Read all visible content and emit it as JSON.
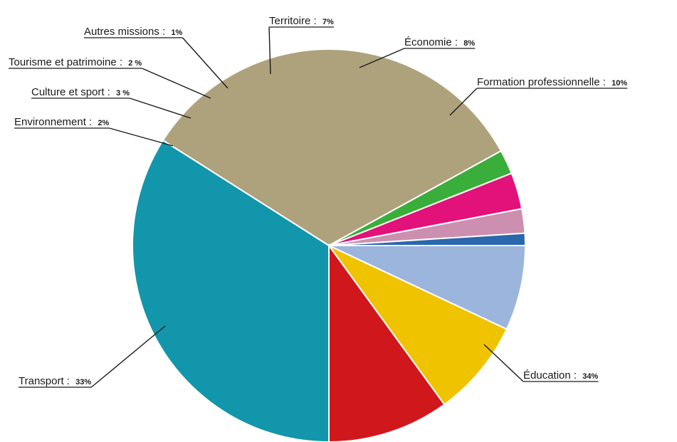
{
  "chart_data": {
    "type": "pie",
    "title": "",
    "slices": [
      {
        "label": "Éducation :",
        "value_text": "34%",
        "value": 34,
        "color": "#1196ab"
      },
      {
        "label": "Transport :",
        "value_text": "33%",
        "value": 33,
        "color": "#aea27d"
      },
      {
        "label": "Environnement :",
        "value_text": "2%",
        "value": 2,
        "color": "#3aae3a"
      },
      {
        "label": "Culture et sport :",
        "value_text": "3 %",
        "value": 3,
        "color": "#e3117a"
      },
      {
        "label": "Tourisme et patrimoine :",
        "value_text": "2 %",
        "value": 2,
        "color": "#cd8fb0"
      },
      {
        "label": "Autres missions :",
        "value_text": "1%",
        "value": 1,
        "color": "#2a67ad"
      },
      {
        "label": "Territoire :",
        "value_text": "7%",
        "value": 7,
        "color": "#9cb5dc"
      },
      {
        "label": "Économie :",
        "value_text": "8%",
        "value": 8,
        "color": "#efc300"
      },
      {
        "label": "Formation professionnelle :",
        "value_text": "10%",
        "value": 10,
        "color": "#d0171b"
      }
    ]
  }
}
